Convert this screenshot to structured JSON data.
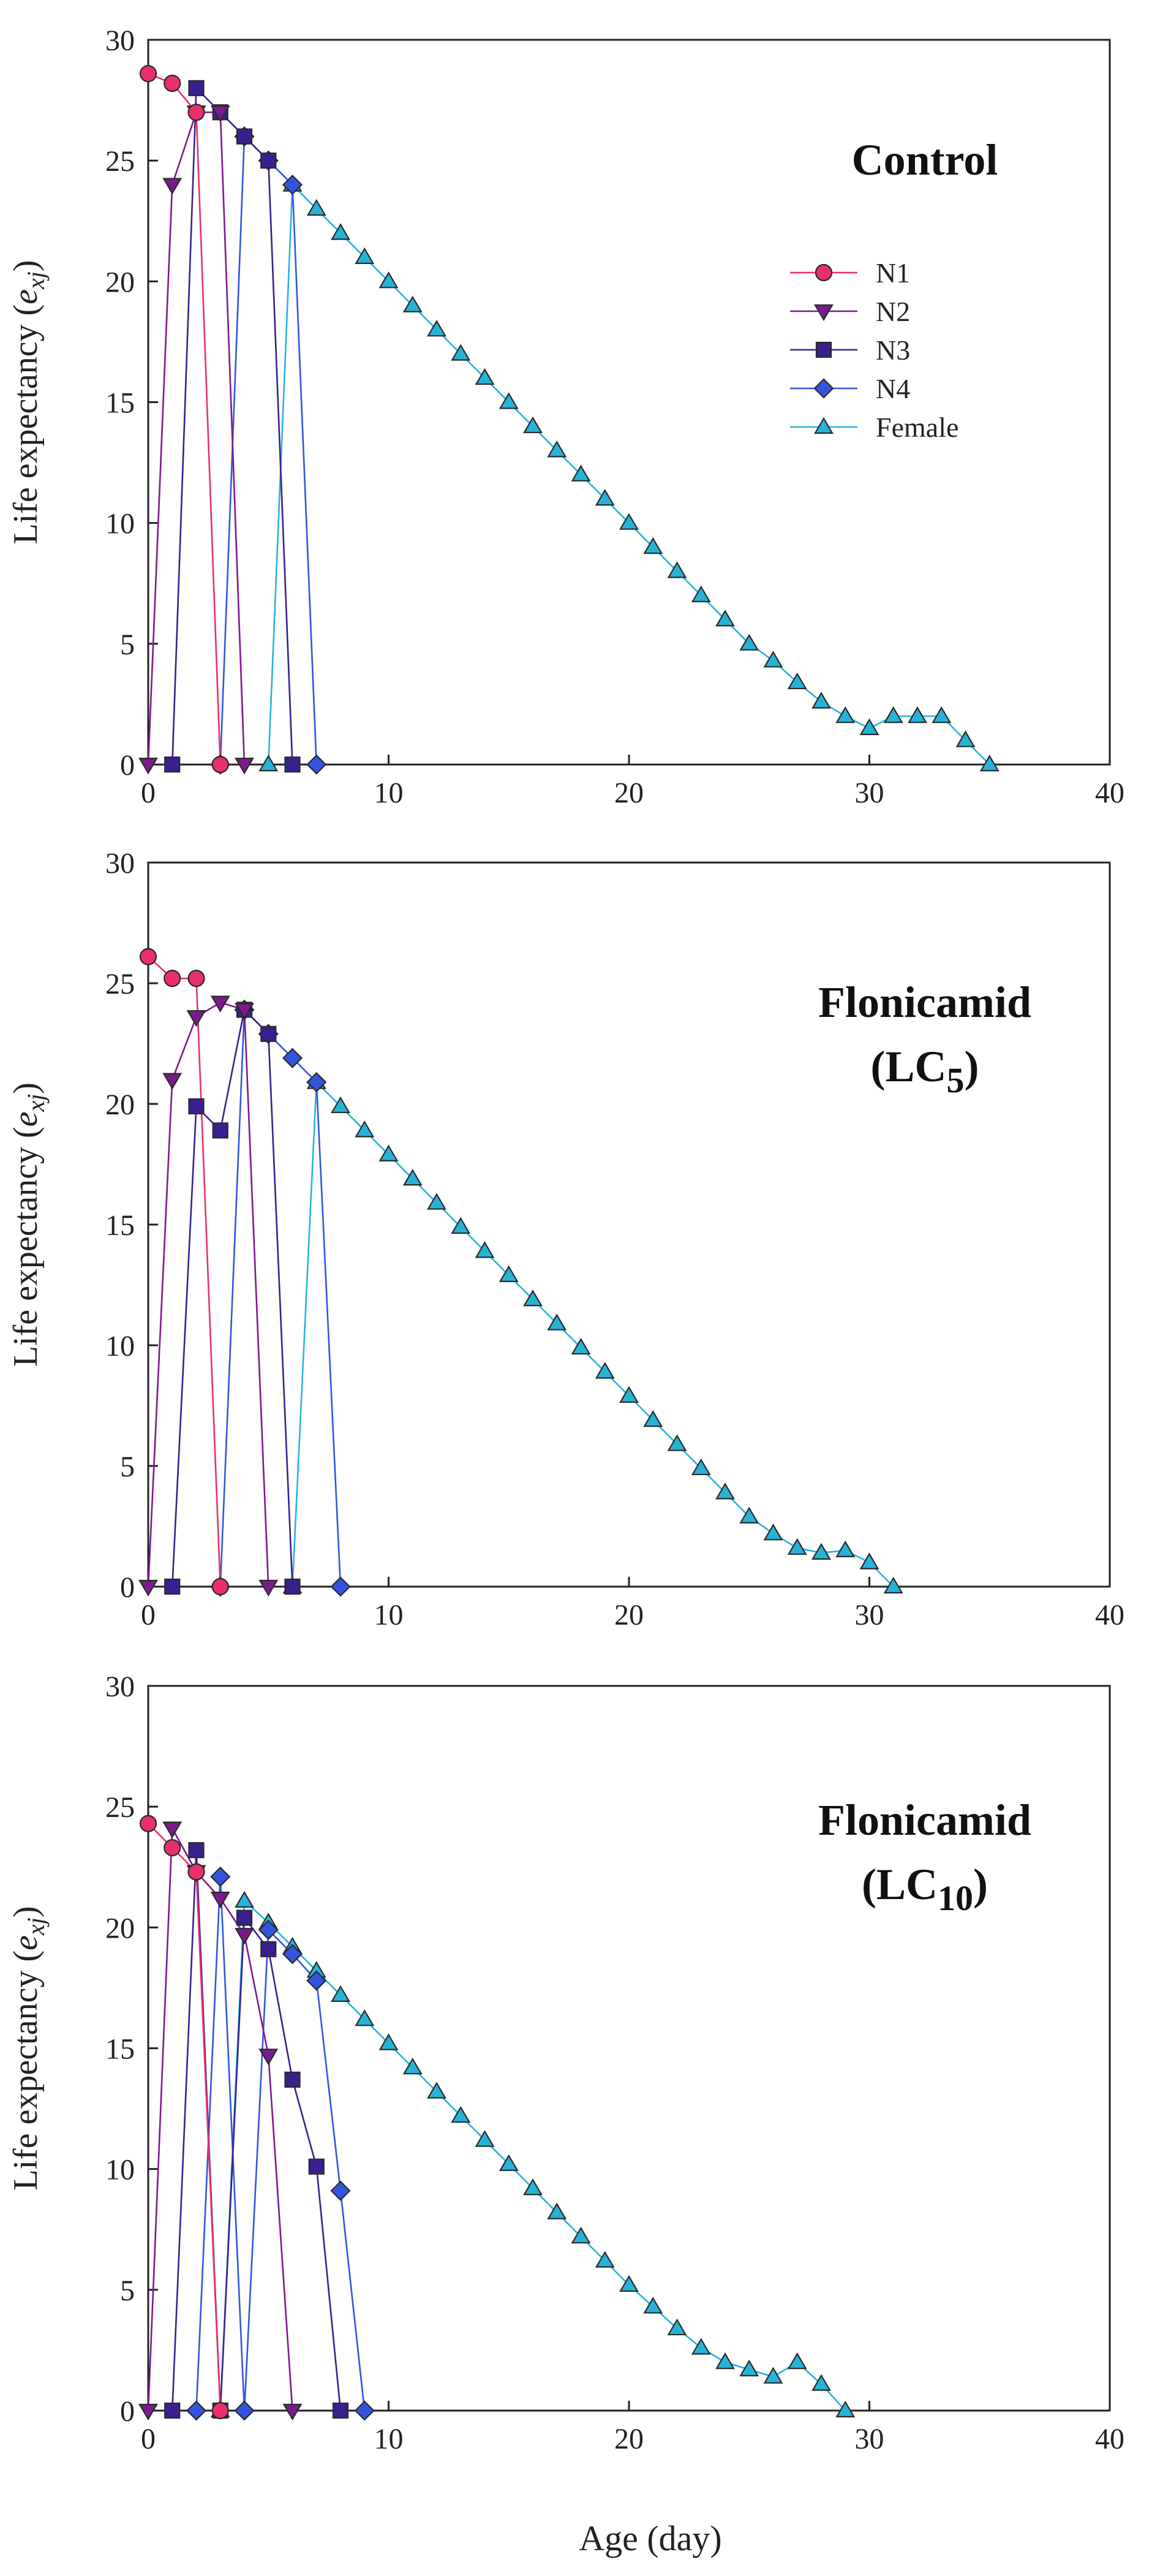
{
  "figure": {
    "x_axis_label": "Age (day)",
    "y_axis_label_main": "Life expectancy (",
    "y_axis_label_var": "e",
    "y_axis_label_sub": "xj",
    "y_axis_label_close": ")",
    "series_colors": {
      "N1": "#e8306e",
      "N2": "#7b1a8c",
      "N3": "#3a1f8f",
      "N4": "#3355dd",
      "Female": "#27b3d8"
    }
  },
  "chart_data": [
    {
      "type": "line",
      "title_lines": [
        "Control"
      ],
      "xlabel": "Age (day)",
      "ylabel": "Life expectancy (exj)",
      "xlim": [
        0,
        40
      ],
      "ylim": [
        0,
        30
      ],
      "xticks": [
        0,
        10,
        20,
        30,
        40
      ],
      "yticks": [
        0,
        5,
        10,
        15,
        20,
        25,
        30
      ],
      "legend": [
        "N1",
        "N2",
        "N3",
        "N4",
        "Female"
      ],
      "legend_position": "upper-right",
      "series": [
        {
          "name": "N1",
          "marker": "circle",
          "x": [
            0,
            1,
            2,
            3
          ],
          "y": [
            28.6,
            28.2,
            27.0,
            0
          ]
        },
        {
          "name": "N2",
          "marker": "triangle-down",
          "x": [
            0,
            1,
            2,
            3,
            4
          ],
          "y": [
            0,
            24.0,
            27.0,
            27.0,
            0
          ]
        },
        {
          "name": "N3",
          "marker": "square",
          "x": [
            1,
            2,
            3,
            4,
            5,
            6
          ],
          "y": [
            0,
            28.0,
            27.0,
            26.0,
            25.0,
            0
          ]
        },
        {
          "name": "N4",
          "marker": "diamond",
          "x": [
            3,
            4,
            5,
            6,
            7
          ],
          "y": [
            0,
            26.0,
            25.0,
            24.0,
            0
          ]
        },
        {
          "name": "Female",
          "marker": "triangle-up",
          "x": [
            5,
            6,
            7,
            8,
            9,
            10,
            11,
            12,
            13,
            14,
            15,
            16,
            17,
            18,
            19,
            20,
            21,
            22,
            23,
            24,
            25,
            26,
            27,
            28,
            29,
            30,
            31,
            32,
            33,
            34,
            35
          ],
          "y": [
            0,
            24.0,
            23.0,
            22.0,
            21.0,
            20.0,
            19.0,
            18.0,
            17.0,
            16.0,
            15.0,
            14.0,
            13.0,
            12.0,
            11.0,
            10.0,
            9.0,
            8.0,
            7.0,
            6.0,
            5.0,
            4.3,
            3.4,
            2.6,
            2.0,
            1.5,
            2.0,
            2.0,
            2.0,
            1.0,
            0
          ]
        }
      ]
    },
    {
      "type": "line",
      "title_lines": [
        "Flonicamid",
        "(LC5)"
      ],
      "title_sub": "5",
      "xlabel": "Age (day)",
      "ylabel": "Life expectancy (exj)",
      "xlim": [
        0,
        40
      ],
      "ylim": [
        0,
        30
      ],
      "xticks": [
        0,
        10,
        20,
        30,
        40
      ],
      "yticks": [
        0,
        5,
        10,
        15,
        20,
        25,
        30
      ],
      "series": [
        {
          "name": "N1",
          "marker": "circle",
          "x": [
            0,
            1,
            2,
            3
          ],
          "y": [
            26.1,
            25.2,
            25.2,
            0
          ]
        },
        {
          "name": "N2",
          "marker": "triangle-down",
          "x": [
            0,
            1,
            2,
            3,
            4,
            5
          ],
          "y": [
            0,
            21.0,
            23.6,
            24.2,
            23.9,
            0
          ]
        },
        {
          "name": "N3",
          "marker": "square",
          "x": [
            1,
            2,
            3,
            4,
            5,
            6
          ],
          "y": [
            0,
            19.9,
            18.9,
            23.9,
            22.9,
            0
          ]
        },
        {
          "name": "N4",
          "marker": "diamond",
          "x": [
            3,
            4,
            5,
            6,
            7,
            8
          ],
          "y": [
            0,
            23.9,
            22.9,
            21.9,
            20.9,
            0
          ]
        },
        {
          "name": "Female",
          "marker": "triangle-up",
          "x": [
            6,
            7,
            8,
            9,
            10,
            11,
            12,
            13,
            14,
            15,
            16,
            17,
            18,
            19,
            20,
            21,
            22,
            23,
            24,
            25,
            26,
            27,
            28,
            29,
            30,
            31
          ],
          "y": [
            0,
            20.9,
            19.9,
            18.9,
            17.9,
            16.9,
            15.9,
            14.9,
            13.9,
            12.9,
            11.9,
            10.9,
            9.9,
            8.9,
            7.9,
            6.9,
            5.9,
            4.9,
            3.9,
            2.9,
            2.2,
            1.6,
            1.4,
            1.5,
            1.0,
            0
          ]
        }
      ]
    },
    {
      "type": "line",
      "title_lines": [
        "Flonicamid",
        "(LC10)"
      ],
      "title_sub": "10",
      "xlabel": "Age (day)",
      "ylabel": "Life expectancy (exj)",
      "xlim": [
        0,
        40
      ],
      "ylim": [
        0,
        30
      ],
      "xticks": [
        0,
        10,
        20,
        30,
        40
      ],
      "yticks": [
        0,
        5,
        10,
        15,
        20,
        25,
        30
      ],
      "series": [
        {
          "name": "N1",
          "marker": "circle",
          "x": [
            0,
            1,
            2,
            3
          ],
          "y": [
            24.3,
            23.3,
            22.3,
            0
          ]
        },
        {
          "name": "N2",
          "marker": "triangle-down",
          "x": [
            0,
            1,
            2,
            3,
            4,
            5,
            6
          ],
          "y": [
            0,
            24.1,
            22.3,
            21.2,
            19.7,
            14.7,
            0
          ]
        },
        {
          "name": "N3",
          "marker": "square",
          "x": [
            1,
            2,
            3,
            4,
            5,
            6,
            7,
            8
          ],
          "y": [
            0,
            23.2,
            0,
            20.4,
            19.1,
            13.7,
            10.1,
            0
          ]
        },
        {
          "name": "N4",
          "marker": "diamond",
          "x": [
            2,
            3,
            4,
            5,
            6,
            7,
            8,
            9
          ],
          "y": [
            0,
            22.1,
            0,
            19.9,
            18.9,
            17.8,
            9.1,
            0
          ]
        },
        {
          "name": "Female",
          "marker": "triangle-up",
          "x": [
            3,
            4,
            5,
            6,
            7,
            8,
            9,
            10,
            11,
            12,
            13,
            14,
            15,
            16,
            17,
            18,
            19,
            20,
            21,
            22,
            23,
            24,
            25,
            26,
            27,
            28,
            29
          ],
          "y": [
            0,
            21.1,
            20.2,
            19.2,
            18.2,
            17.2,
            16.2,
            15.2,
            14.2,
            13.2,
            12.2,
            11.2,
            10.2,
            9.2,
            8.2,
            7.2,
            6.2,
            5.2,
            4.3,
            3.4,
            2.6,
            2.0,
            1.7,
            1.4,
            2.0,
            1.1,
            0
          ]
        }
      ]
    }
  ]
}
